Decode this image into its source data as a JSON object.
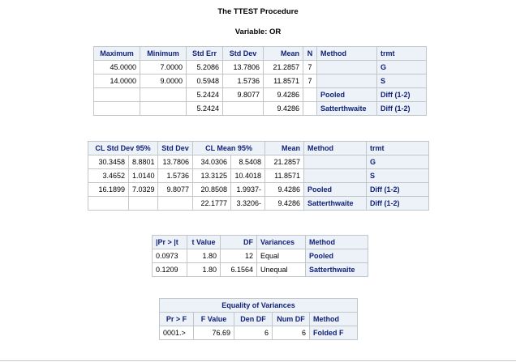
{
  "header": {
    "procedure_title": "The TTEST Procedure",
    "variable_title": "Variable: OR"
  },
  "table1": {
    "columns": [
      "Maximum",
      "Minimum",
      "Std Err",
      "Std Dev",
      "Mean",
      "N",
      "Method",
      "trmt"
    ],
    "rows": [
      [
        "45.0000",
        "7.0000",
        "5.2086",
        "13.7806",
        "21.2857",
        "7",
        "",
        "G"
      ],
      [
        "14.0000",
        "9.0000",
        "0.5948",
        "1.5736",
        "11.8571",
        "7",
        "",
        "S"
      ],
      [
        "",
        "",
        "5.2424",
        "9.8077",
        "9.4286",
        "",
        "Pooled",
        "Diff (1-2)"
      ],
      [
        "",
        "",
        "5.2424",
        "",
        "9.4286",
        "",
        "Satterthwaite",
        "Diff (1-2)"
      ]
    ]
  },
  "table2": {
    "columns": [
      "CL Std Dev 95%",
      "Std Dev",
      "CL Mean 95%",
      "Mean",
      "Method",
      "trmt"
    ],
    "rows": [
      [
        "30.3458",
        "8.8801",
        "13.7806",
        "34.0306",
        "8.5408",
        "21.2857",
        "",
        "G"
      ],
      [
        "3.4652",
        "1.0140",
        "1.5736",
        "13.3125",
        "10.4018",
        "11.8571",
        "",
        "S"
      ],
      [
        "16.1899",
        "7.0329",
        "9.8077",
        "20.8508",
        "1.9937-",
        "9.4286",
        "Pooled",
        "Diff (1-2)"
      ],
      [
        "",
        "",
        "",
        "22.1777",
        "3.3206-",
        "9.4286",
        "Satterthwaite",
        "Diff (1-2)"
      ]
    ]
  },
  "table3": {
    "columns": [
      "|Pr > |t",
      "t Value",
      "DF",
      "Variances",
      "Method"
    ],
    "rows": [
      [
        "0.0973",
        "1.80",
        "12",
        "Equal",
        "Pooled"
      ],
      [
        "0.1209",
        "1.80",
        "6.1564",
        "Unequal",
        "Satterthwaite"
      ]
    ]
  },
  "table4": {
    "caption": "Equality of Variances",
    "columns": [
      "Pr > F",
      "F Value",
      "Den DF",
      "Num DF",
      "Method"
    ],
    "rows": [
      [
        "0001.>",
        "76.69",
        "6",
        "6",
        "Folded F"
      ]
    ]
  }
}
